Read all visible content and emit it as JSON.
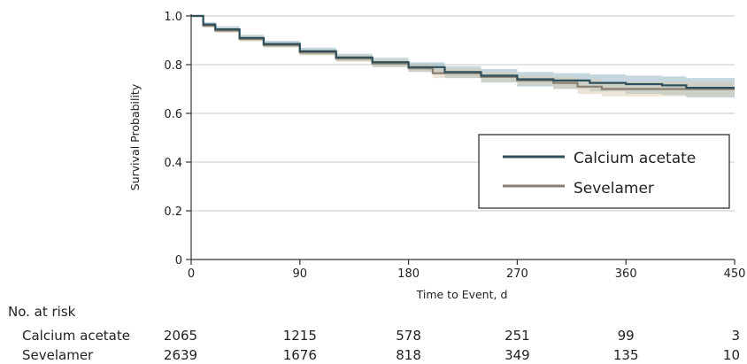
{
  "chart_data": {
    "type": "line",
    "title": "",
    "xlabel": "Time to Event, d",
    "ylabel": "Survival Probability",
    "xlim": [
      0,
      450
    ],
    "ylim": [
      0,
      1.0
    ],
    "x_ticks": [
      0,
      90,
      180,
      270,
      360,
      450
    ],
    "y_ticks": [
      0,
      0.2,
      0.4,
      0.6,
      0.8,
      1.0
    ],
    "x_tick_labels": [
      "0",
      "90",
      "180",
      "270",
      "360",
      "450"
    ],
    "y_tick_labels": [
      "0",
      "0.2",
      "0.4",
      "0.6",
      "0.8",
      "1.0"
    ],
    "grid": "horizontal",
    "legend_position": "right",
    "series": [
      {
        "name": "Calcium acetate",
        "color": "#2f4f5a",
        "band_color": "#7fa7b6",
        "x": [
          0,
          10,
          20,
          40,
          60,
          90,
          120,
          150,
          180,
          210,
          240,
          270,
          300,
          330,
          360,
          390,
          410,
          450
        ],
        "y": [
          1.0,
          0.965,
          0.945,
          0.91,
          0.885,
          0.855,
          0.83,
          0.81,
          0.79,
          0.77,
          0.755,
          0.74,
          0.735,
          0.725,
          0.72,
          0.715,
          0.705,
          0.705
        ],
        "ci_lower": [
          1.0,
          0.955,
          0.935,
          0.9,
          0.872,
          0.84,
          0.815,
          0.79,
          0.77,
          0.745,
          0.727,
          0.71,
          0.7,
          0.69,
          0.68,
          0.675,
          0.665,
          0.665
        ],
        "ci_upper": [
          1.0,
          0.975,
          0.958,
          0.923,
          0.898,
          0.87,
          0.845,
          0.828,
          0.81,
          0.793,
          0.782,
          0.77,
          0.765,
          0.76,
          0.755,
          0.752,
          0.745,
          0.745
        ]
      },
      {
        "name": "Sevelamer",
        "color": "#8a7e70",
        "band_color": "#d8c8a8",
        "x": [
          0,
          10,
          20,
          40,
          60,
          90,
          120,
          150,
          180,
          200,
          240,
          270,
          300,
          320,
          340,
          360,
          390,
          410,
          450
        ],
        "y": [
          1.0,
          0.96,
          0.94,
          0.905,
          0.88,
          0.85,
          0.825,
          0.805,
          0.785,
          0.765,
          0.75,
          0.735,
          0.725,
          0.71,
          0.7,
          0.7,
          0.7,
          0.7,
          0.7
        ],
        "ci_lower": [
          1.0,
          0.952,
          0.93,
          0.895,
          0.87,
          0.838,
          0.812,
          0.79,
          0.77,
          0.745,
          0.73,
          0.715,
          0.7,
          0.68,
          0.67,
          0.67,
          0.67,
          0.67,
          0.67
        ],
        "ci_upper": [
          1.0,
          0.968,
          0.95,
          0.915,
          0.89,
          0.862,
          0.838,
          0.82,
          0.8,
          0.785,
          0.77,
          0.755,
          0.75,
          0.74,
          0.73,
          0.73,
          0.73,
          0.73,
          0.73
        ]
      }
    ]
  },
  "risk_table": {
    "header": "No. at risk",
    "rows": [
      {
        "label": "Calcium acetate",
        "values": [
          "2065",
          "1215",
          "578",
          "251",
          "99",
          "3"
        ]
      },
      {
        "label": "Sevelamer",
        "values": [
          "2639",
          "1676",
          "818",
          "349",
          "135",
          "10"
        ]
      }
    ]
  }
}
